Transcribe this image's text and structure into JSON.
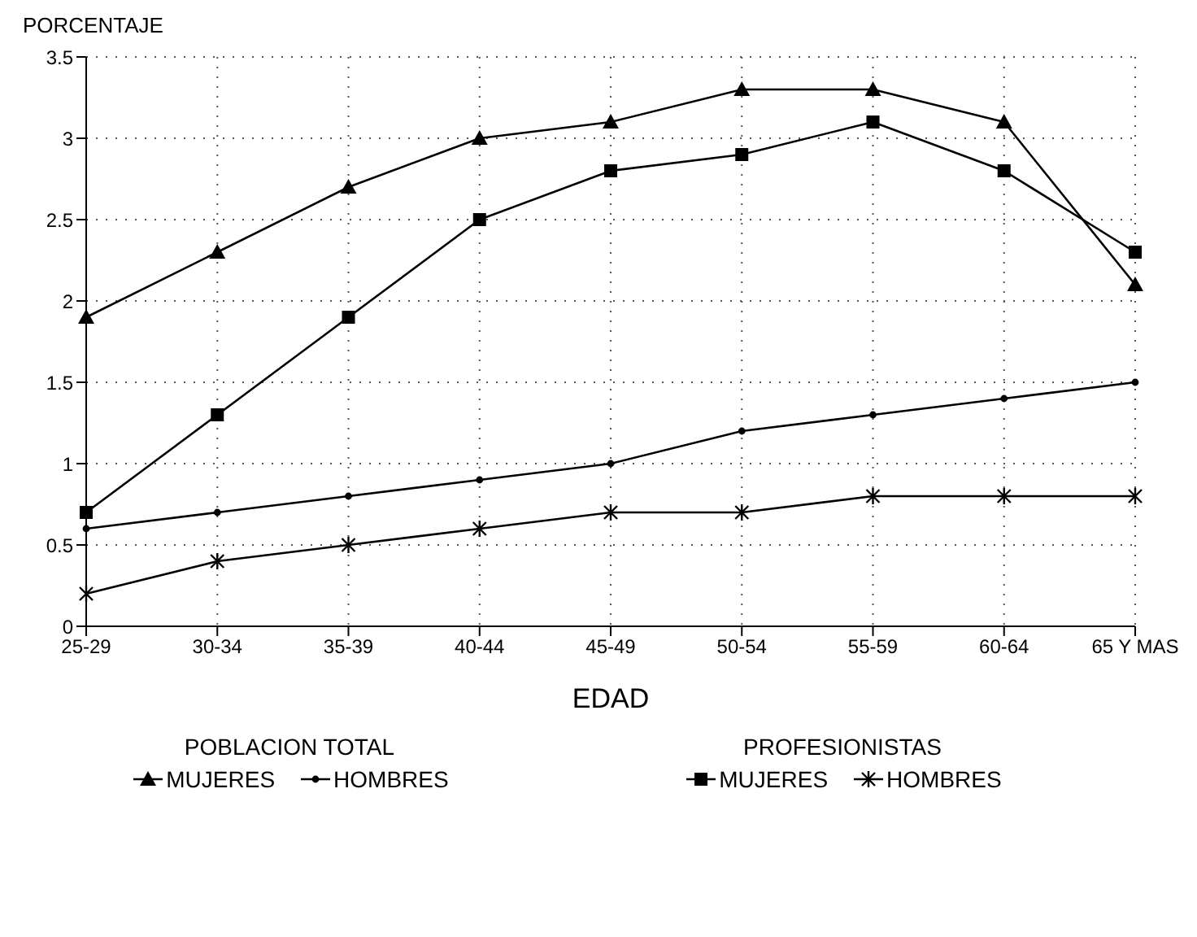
{
  "chart_data": {
    "type": "line",
    "xlabel": "EDAD",
    "ylabel": "PORCENTAJE",
    "categories": [
      "25-29",
      "30-34",
      "35-39",
      "40-44",
      "45-49",
      "50-54",
      "55-59",
      "60-64",
      "65 Y MAS"
    ],
    "series": [
      {
        "name": "MUJERES",
        "marker": "triangle",
        "color": "#000000",
        "values": [
          1.9,
          2.3,
          2.7,
          3.0,
          3.1,
          3.3,
          3.3,
          3.1,
          2.1
        ]
      },
      {
        "name": "HOMBRES",
        "marker": "circle",
        "color": "#000000",
        "values": [
          0.6,
          0.7,
          0.8,
          0.9,
          1.0,
          1.2,
          1.3,
          1.4,
          1.5
        ]
      },
      {
        "name": "MUJERES",
        "marker": "square",
        "color": "#000000",
        "values": [
          0.7,
          1.3,
          1.9,
          2.5,
          2.8,
          2.9,
          3.1,
          2.8,
          2.3
        ]
      },
      {
        "name": "HOMBRES",
        "marker": "cross",
        "color": "#000000",
        "values": [
          0.2,
          0.4,
          0.5,
          0.6,
          0.7,
          0.7,
          0.8,
          0.8,
          0.8
        ]
      }
    ],
    "annotations": [
      "POBLACION TOTAL",
      "PROFESIONISTAS"
    ],
    "ylim": [
      0,
      3.5
    ],
    "yticks": [
      0,
      0.5,
      1,
      1.5,
      2,
      2.5,
      3,
      3.5
    ],
    "grid": true,
    "legend": "bottom",
    "line_style": "solid"
  }
}
